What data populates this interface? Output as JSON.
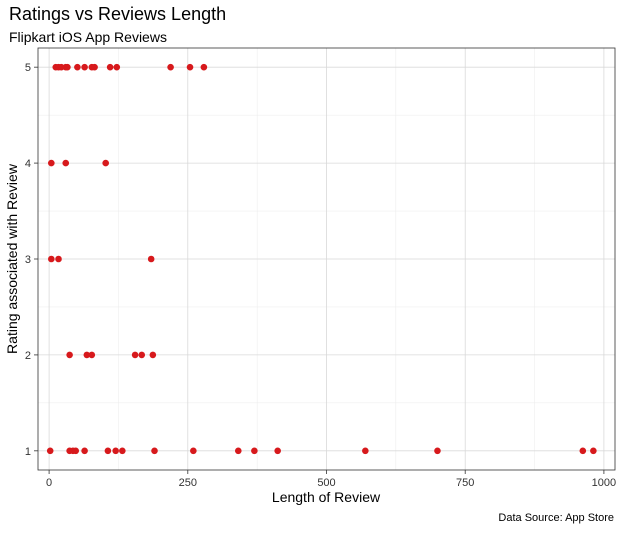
{
  "chart_data": {
    "type": "scatter",
    "title": "Ratings vs Reviews Length",
    "subtitle": "Flipkart iOS App Reviews",
    "caption": "Data Source: App Store",
    "xlabel": "Length of Review",
    "ylabel": "Rating associated with Review",
    "xlim": [
      -20,
      1020
    ],
    "ylim": [
      0.8,
      5.2
    ],
    "x_ticks": [
      0,
      250,
      500,
      750,
      1000
    ],
    "y_ticks": [
      1,
      2,
      3,
      4,
      5
    ],
    "grid": true,
    "point_color": "#d7191c",
    "points": [
      {
        "x": 2,
        "y": 1
      },
      {
        "x": 37,
        "y": 1
      },
      {
        "x": 43,
        "y": 1
      },
      {
        "x": 48,
        "y": 1
      },
      {
        "x": 64,
        "y": 1
      },
      {
        "x": 106,
        "y": 1
      },
      {
        "x": 120,
        "y": 1
      },
      {
        "x": 132,
        "y": 1
      },
      {
        "x": 190,
        "y": 1
      },
      {
        "x": 260,
        "y": 1
      },
      {
        "x": 341,
        "y": 1
      },
      {
        "x": 370,
        "y": 1
      },
      {
        "x": 412,
        "y": 1
      },
      {
        "x": 570,
        "y": 1
      },
      {
        "x": 700,
        "y": 1
      },
      {
        "x": 962,
        "y": 1
      },
      {
        "x": 981,
        "y": 1
      },
      {
        "x": 37,
        "y": 2
      },
      {
        "x": 68,
        "y": 2
      },
      {
        "x": 77,
        "y": 2
      },
      {
        "x": 155,
        "y": 2
      },
      {
        "x": 167,
        "y": 2
      },
      {
        "x": 187,
        "y": 2
      },
      {
        "x": 4,
        "y": 3
      },
      {
        "x": 17,
        "y": 3
      },
      {
        "x": 184,
        "y": 3
      },
      {
        "x": 4,
        "y": 4
      },
      {
        "x": 30,
        "y": 4
      },
      {
        "x": 102,
        "y": 4
      },
      {
        "x": 12,
        "y": 5
      },
      {
        "x": 17,
        "y": 5
      },
      {
        "x": 22,
        "y": 5
      },
      {
        "x": 30,
        "y": 5
      },
      {
        "x": 33,
        "y": 5
      },
      {
        "x": 51,
        "y": 5
      },
      {
        "x": 64,
        "y": 5
      },
      {
        "x": 77,
        "y": 5
      },
      {
        "x": 82,
        "y": 5
      },
      {
        "x": 110,
        "y": 5
      },
      {
        "x": 122,
        "y": 5
      },
      {
        "x": 219,
        "y": 5
      },
      {
        "x": 254,
        "y": 5
      },
      {
        "x": 279,
        "y": 5
      }
    ]
  }
}
